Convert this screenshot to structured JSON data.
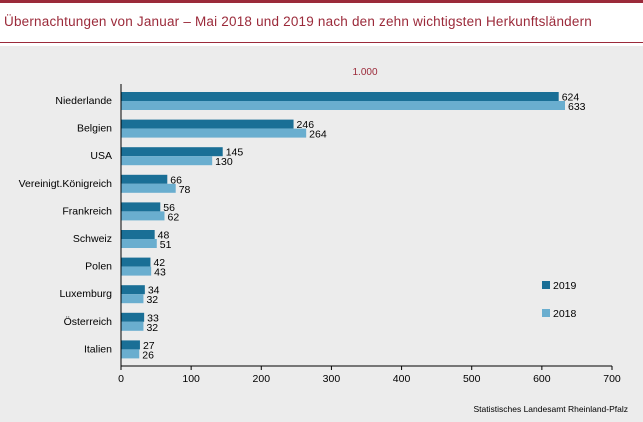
{
  "title": "Übernachtungen von Januar – Mai 2018 und 2019 nach den zehn wichtigsten Herkunftsländern",
  "source": "Statistisches Landesamt Rheinland-Pfalz",
  "colors": {
    "accent": "#9b2a3a",
    "s2019": "#1a6f96",
    "s2018": "#6aaecf",
    "panel": "#ececec"
  },
  "chart_data": {
    "type": "bar",
    "orientation": "horizontal",
    "unit_label": "1.000",
    "categories": [
      "Niederlande",
      "Belgien",
      "USA",
      "Vereinigt.Königreich",
      "Frankreich",
      "Schweiz",
      "Polen",
      "Luxemburg",
      "Österreich",
      "Italien"
    ],
    "series": [
      {
        "name": "2019",
        "values": [
          624,
          246,
          145,
          66,
          56,
          48,
          42,
          34,
          33,
          27
        ]
      },
      {
        "name": "2018",
        "values": [
          633,
          264,
          130,
          78,
          62,
          51,
          43,
          32,
          32,
          26
        ]
      }
    ],
    "xlim": [
      0,
      700
    ],
    "xticks": [
      0,
      100,
      200,
      300,
      400,
      500,
      600,
      700
    ],
    "legend": "right",
    "grid": false
  }
}
